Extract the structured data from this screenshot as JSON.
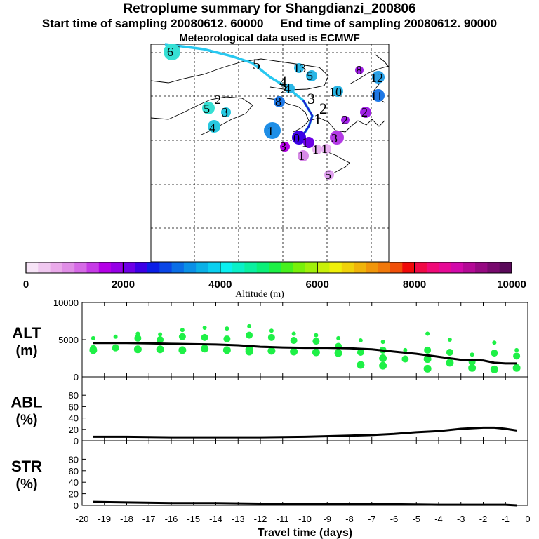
{
  "header": {
    "title": "Retroplume summary for Shangdianzi_200806",
    "sampling_line": "Start time of sampling 20080612. 60000     End time of sampling 20080612. 90000",
    "met_line": "Meteorological data used is ECMWF"
  },
  "colorbar": {
    "ticks": [
      "0",
      "2000",
      "4000",
      "6000",
      "8000",
      "10000"
    ],
    "label": "Altitude (m)",
    "colors": [
      "#f7e4f7",
      "#f0c8f0",
      "#eaaaea",
      "#e08ee6",
      "#d66ae6",
      "#c63ae6",
      "#b400e6",
      "#9600e6",
      "#6e00e6",
      "#3c00e6",
      "#0a1ee6",
      "#0a46e6",
      "#0a6ee6",
      "#0a90e6",
      "#0ab0e6",
      "#0ad0f0",
      "#0af0f0",
      "#0af0c8",
      "#0af0a0",
      "#0af078",
      "#1ef046",
      "#46f01e",
      "#78f00a",
      "#a0f00a",
      "#c8f00a",
      "#f0f00a",
      "#f0d20a",
      "#f0b40a",
      "#f0960a",
      "#f0780a",
      "#f0500a",
      "#f00a0a",
      "#f00a46",
      "#f00a78",
      "#e60a96",
      "#d20aaa",
      "#b40a96",
      "#960a82",
      "#780a6e",
      "#5a0a5a"
    ]
  },
  "map": {
    "track_labels": [
      "1",
      "2",
      "3",
      "4",
      "5",
      "6"
    ],
    "cluster_labels": [
      {
        "t": "6",
        "c": "#36e0d4"
      },
      {
        "t": "5",
        "c": "#36e0d4"
      },
      {
        "t": "4",
        "c": "#28c8e0"
      },
      {
        "t": "3",
        "c": "#28c8e0"
      },
      {
        "t": "2",
        "c": "#28c8e0"
      },
      {
        "t": "1",
        "c": "#1e8ee6"
      },
      {
        "t": "8",
        "c": "#1e78e6"
      },
      {
        "t": "13",
        "c": "#2ab6e6"
      },
      {
        "t": "5",
        "c": "#2ab6e6"
      },
      {
        "t": "4",
        "c": "#2ab6e6"
      },
      {
        "t": "2",
        "c": "#1e78e6"
      },
      {
        "t": "10",
        "c": "#2ab6e6"
      },
      {
        "t": "8",
        "c": "#a020e6"
      },
      {
        "t": "12",
        "c": "#2aa0e6"
      },
      {
        "t": "11",
        "c": "#1e78e6"
      },
      {
        "t": "2",
        "c": "#a020e6"
      },
      {
        "t": "2",
        "c": "#a020e6"
      },
      {
        "t": "3",
        "c": "#b43ae6"
      },
      {
        "t": "0",
        "c": "#3c00e6"
      },
      {
        "t": "1",
        "c": "#6e00e6"
      },
      {
        "t": "3",
        "c": "#b400e6"
      },
      {
        "t": "1",
        "c": "#d68ae6"
      },
      {
        "t": "1",
        "c": "#e8b0f0"
      },
      {
        "t": "1",
        "c": "#e8b0f0"
      },
      {
        "t": "5",
        "c": "#e0a0f0"
      }
    ]
  },
  "chart_data": [
    {
      "type": "scatter",
      "name": "ALT",
      "title": "ALT",
      "ylabel": "(m)",
      "xlim": [
        -20,
        0
      ],
      "ylim": [
        0,
        10000
      ],
      "yticks": [
        "10000",
        "5000",
        "0"
      ],
      "mean_line": {
        "x": [
          -19.5,
          -19,
          -18,
          -17,
          -16,
          -15,
          -14,
          -13,
          -12,
          -11,
          -10,
          -9,
          -8,
          -7,
          -6,
          -5,
          -4,
          -3,
          -2,
          -1.5,
          -1,
          -0.5
        ],
        "y": [
          4550,
          4550,
          4550,
          4500,
          4450,
          4400,
          4350,
          4250,
          4050,
          3950,
          3900,
          3900,
          3850,
          3700,
          3400,
          3100,
          2700,
          2300,
          2200,
          1900,
          1800,
          1800
        ]
      },
      "clusters": [
        {
          "x": -19.5,
          "y": [
            5200,
            3800,
            3600
          ]
        },
        {
          "x": -18.5,
          "y": [
            5400,
            3900
          ]
        },
        {
          "x": -17.5,
          "y": [
            5800,
            5200,
            3700
          ]
        },
        {
          "x": -16.5,
          "y": [
            5700,
            5000,
            3700
          ]
        },
        {
          "x": -15.5,
          "y": [
            6300,
            5400,
            3600
          ]
        },
        {
          "x": -14.5,
          "y": [
            6600,
            5300,
            3800
          ]
        },
        {
          "x": -13.5,
          "y": [
            6500,
            5100,
            3600
          ]
        },
        {
          "x": -12.5,
          "y": [
            6800,
            5600,
            3400,
            3700
          ]
        },
        {
          "x": -11.5,
          "y": [
            6200,
            5300,
            3500
          ]
        },
        {
          "x": -10.5,
          "y": [
            5800,
            4900,
            3400
          ]
        },
        {
          "x": -9.5,
          "y": [
            5600,
            4800,
            3300
          ]
        },
        {
          "x": -8.5,
          "y": [
            5200,
            4100,
            3200
          ]
        },
        {
          "x": -7.5,
          "y": [
            4900,
            3300,
            1600
          ]
        },
        {
          "x": -6.5,
          "y": [
            4700,
            3600,
            2500,
            1500
          ]
        },
        {
          "x": -5.5,
          "y": [
            3600,
            2400
          ]
        },
        {
          "x": -4.5,
          "y": [
            5800,
            3600,
            2400,
            1100
          ]
        },
        {
          "x": -3.5,
          "y": [
            5000,
            3300,
            1900
          ]
        },
        {
          "x": -2.5,
          "y": [
            3000,
            2000,
            1200
          ]
        },
        {
          "x": -1.5,
          "y": [
            4600,
            3200,
            1000
          ]
        },
        {
          "x": -0.5,
          "y": [
            3600,
            2800,
            1200
          ]
        }
      ]
    },
    {
      "type": "line",
      "name": "ABL",
      "title": "ABL",
      "ylabel": "(%)",
      "xlim": [
        -20,
        0
      ],
      "ylim": [
        0,
        100
      ],
      "yticks": [
        "80",
        "60",
        "40",
        "20",
        "0"
      ],
      "x": [
        -19.5,
        -18,
        -16,
        -14,
        -12,
        -10,
        -8,
        -7,
        -6,
        -5,
        -4,
        -3,
        -2,
        -1.5,
        -1,
        -0.5
      ],
      "y": [
        7,
        7,
        6,
        6,
        6,
        7,
        9,
        10,
        12,
        15,
        17,
        21,
        23,
        23,
        21,
        18
      ]
    },
    {
      "type": "line",
      "name": "STR",
      "title": "STR",
      "ylabel": "(%)",
      "xlim": [
        -20,
        0
      ],
      "ylim": [
        0,
        100
      ],
      "yticks": [
        "80",
        "60",
        "40",
        "20",
        "0"
      ],
      "xticks": [
        "-20",
        "-19",
        "-18",
        "-17",
        "-16",
        "-15",
        "-14",
        "-13",
        "-12",
        "-11",
        "-10",
        "-9",
        "-8",
        "-7",
        "-6",
        "-5",
        "-4",
        "-3",
        "-2",
        "-1",
        "0"
      ],
      "xlabel": "Travel time (days)",
      "x": [
        -19.5,
        -18,
        -16,
        -14,
        -12,
        -10,
        -8,
        -6,
        -4,
        -2,
        -1,
        -0.5
      ],
      "y": [
        6,
        5,
        4,
        4,
        3,
        3,
        2,
        2,
        1,
        1,
        1,
        0
      ]
    }
  ]
}
